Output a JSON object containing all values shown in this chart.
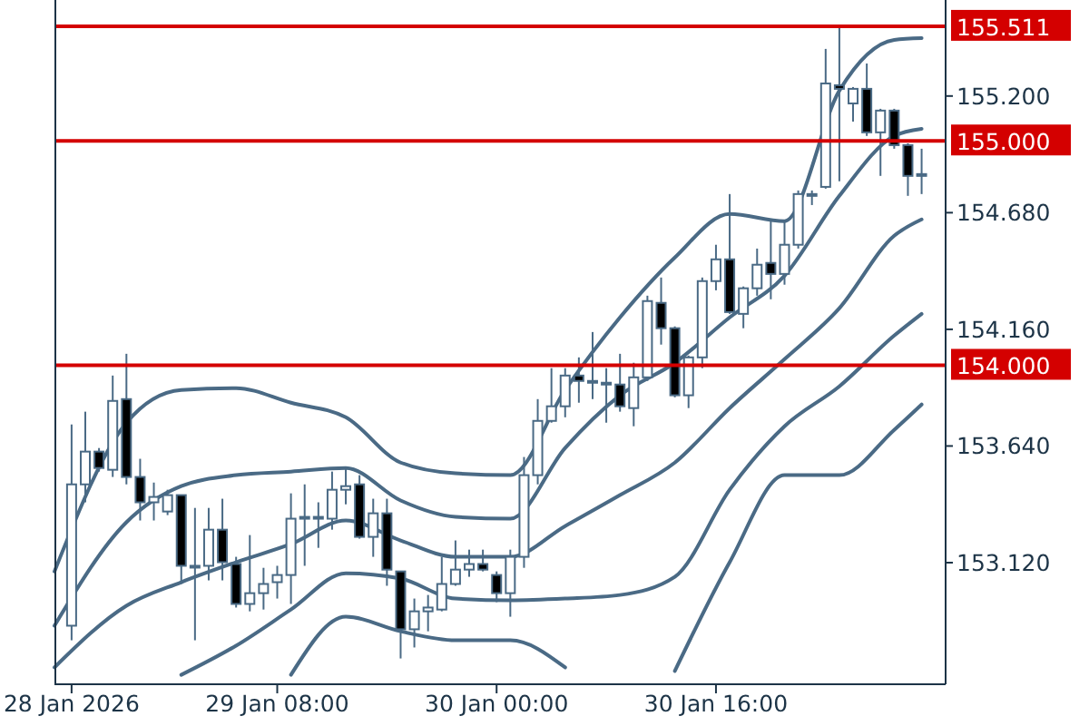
{
  "chart_data": {
    "type": "candlestick",
    "color": "#4a6a85",
    "x": [
      "2026-01-28T17:00",
      "2026-01-28T18:00",
      "2026-01-28T19:00",
      "2026-01-28T20:00",
      "2026-01-28T21:00",
      "2026-01-28T22:00",
      "2026-01-28T23:00",
      "2026-01-29T00:00",
      "2026-01-29T01:00",
      "2026-01-29T02:00",
      "2026-01-29T03:00",
      "2026-01-29T04:00",
      "2026-01-29T05:00",
      "2026-01-29T06:00",
      "2026-01-29T07:00",
      "2026-01-29T08:00",
      "2026-01-29T09:00",
      "2026-01-29T10:00",
      "2026-01-29T11:00",
      "2026-01-29T12:00",
      "2026-01-29T13:00",
      "2026-01-29T14:00",
      "2026-01-29T15:00",
      "2026-01-29T16:00",
      "2026-01-29T17:00",
      "2026-01-29T18:00",
      "2026-01-29T19:00",
      "2026-01-29T20:00",
      "2026-01-29T21:00",
      "2026-01-29T22:00",
      "2026-01-29T23:00",
      "2026-01-30T00:00",
      "2026-01-30T01:00",
      "2026-01-30T02:00",
      "2026-01-30T03:00",
      "2026-01-30T04:00",
      "2026-01-30T05:00",
      "2026-01-30T06:00",
      "2026-01-30T07:00",
      "2026-01-30T08:00",
      "2026-01-30T09:00",
      "2026-01-30T10:00",
      "2026-01-30T11:00",
      "2026-01-30T12:00",
      "2026-01-30T13:00",
      "2026-01-30T14:00",
      "2026-01-30T15:00",
      "2026-01-30T16:00",
      "2026-01-30T17:00",
      "2026-01-30T18:00",
      "2026-01-30T19:00",
      "2026-01-30T20:00",
      "2026-01-30T21:00",
      "2026-01-30T22:00",
      "2026-01-30T23:00",
      "2026-01-31T00:00",
      "2026-01-31T01:00",
      "2026-01-31T02:00",
      "2026-01-31T03:00",
      "2026-01-31T04:00",
      "2026-01-31T05:00",
      "2026-01-31T06:00",
      "2026-01-31T07:00"
    ],
    "ohlc": [
      [
        152.839,
        153.736,
        152.774,
        153.469
      ],
      [
        153.469,
        153.793,
        153.389,
        153.615
      ],
      [
        153.615,
        153.631,
        153.526,
        153.542
      ],
      [
        153.534,
        153.954,
        153.502,
        153.841
      ],
      [
        153.849,
        154.051,
        153.469,
        153.502
      ],
      [
        153.502,
        153.583,
        153.308,
        153.389
      ],
      [
        153.389,
        153.477,
        153.308,
        153.413
      ],
      [
        153.348,
        153.445,
        153.332,
        153.421
      ],
      [
        153.421,
        153.421,
        153.025,
        153.106
      ],
      [
        153.106,
        153.364,
        152.774,
        153.106
      ],
      [
        153.106,
        153.364,
        153.041,
        153.267
      ],
      [
        153.267,
        153.405,
        153.041,
        153.122
      ],
      [
        153.114,
        153.146,
        152.92,
        152.936
      ],
      [
        152.936,
        153.243,
        152.903,
        152.984
      ],
      [
        152.984,
        153.097,
        152.911,
        153.025
      ],
      [
        153.033,
        153.106,
        152.96,
        153.065
      ],
      [
        153.065,
        153.429,
        152.936,
        153.316
      ],
      [
        153.324,
        153.469,
        153.106,
        153.324
      ],
      [
        153.324,
        153.389,
        153.186,
        153.324
      ],
      [
        153.316,
        153.526,
        153.267,
        153.445
      ],
      [
        153.445,
        153.542,
        153.38,
        153.461
      ],
      [
        153.469,
        153.51,
        153.227,
        153.235
      ],
      [
        153.235,
        153.405,
        153.146,
        153.34
      ],
      [
        153.34,
        153.405,
        153.017,
        153.089
      ],
      [
        153.081,
        153.081,
        152.693,
        152.823
      ],
      [
        152.823,
        152.96,
        152.742,
        152.903
      ],
      [
        152.903,
        152.976,
        152.814,
        152.92
      ],
      [
        152.911,
        153.146,
        152.903,
        153.025
      ],
      [
        153.025,
        153.219,
        153.017,
        153.089
      ],
      [
        153.089,
        153.178,
        153.057,
        153.114
      ],
      [
        153.114,
        153.178,
        153.081,
        153.089
      ],
      [
        153.065,
        153.081,
        152.944,
        152.984
      ],
      [
        152.984,
        153.178,
        152.879,
        153.146
      ],
      [
        153.146,
        153.591,
        153.097,
        153.51
      ],
      [
        153.51,
        153.849,
        153.469,
        153.752
      ],
      [
        153.752,
        153.987,
        153.744,
        153.817
      ],
      [
        153.817,
        153.987,
        153.768,
        153.954
      ],
      [
        153.954,
        154.035,
        153.833,
        153.93
      ],
      [
        153.93,
        154.148,
        153.849,
        153.93
      ],
      [
        153.922,
        153.987,
        153.744,
        153.914
      ],
      [
        153.914,
        154.051,
        153.793,
        153.817
      ],
      [
        153.809,
        154.011,
        153.728,
        153.946
      ],
      [
        153.946,
        154.31,
        153.93,
        154.286
      ],
      [
        154.278,
        154.391,
        154.092,
        154.165
      ],
      [
        154.165,
        154.173,
        153.857,
        153.866
      ],
      [
        153.866,
        154.043,
        153.809,
        154.035
      ],
      [
        154.035,
        154.391,
        153.987,
        154.375
      ],
      [
        154.375,
        154.537,
        154.334,
        154.472
      ],
      [
        154.472,
        154.763,
        154.229,
        154.237
      ],
      [
        154.229,
        154.351,
        154.165,
        154.343
      ],
      [
        154.343,
        154.52,
        154.31,
        154.448
      ],
      [
        154.456,
        154.642,
        154.294,
        154.407
      ],
      [
        154.407,
        154.642,
        154.359,
        154.537
      ],
      [
        154.537,
        154.779,
        154.52,
        154.763
      ],
      [
        154.755,
        154.779,
        154.714,
        154.763
      ],
      [
        154.795,
        155.41,
        154.787,
        155.256
      ],
      [
        155.248,
        155.511,
        154.82,
        155.232
      ],
      [
        155.167,
        155.24,
        155.086,
        155.232
      ],
      [
        155.232,
        155.345,
        155.022,
        155.038
      ],
      [
        155.038,
        155.143,
        154.844,
        155.135
      ],
      [
        155.135,
        155.143,
        154.965,
        154.981
      ],
      [
        154.981,
        154.989,
        154.755,
        154.844
      ],
      [
        154.844,
        154.965,
        154.763,
        154.852
      ]
    ],
    "series": [
      {
        "type": "line",
        "color": "#4a6a85",
        "x": [
          "2026-01-28T15:45",
          "2026-01-28T21:00",
          "2026-01-29T01:00",
          "2026-01-29T05:00",
          "2026-01-29T09:00",
          "2026-01-29T13:00",
          "2026-01-29T17:00",
          "2026-01-29T21:00",
          "2026-01-30T01:00",
          "2026-01-30T05:00",
          "2026-01-30T09:00",
          "2026-01-30T13:00",
          "2026-01-30T17:00",
          "2026-01-30T21:00",
          "2026-01-31T01:00",
          "2026-01-31T05:00",
          "2026-01-31T07:00"
        ],
        "values": [
          153.081,
          153.744,
          153.89,
          153.898,
          153.833,
          153.768,
          153.566,
          153.518,
          153.51,
          153.89,
          154.213,
          154.48,
          154.674,
          154.642,
          155.224,
          155.45,
          155.458
        ]
      },
      {
        "type": "line",
        "color": "#4a6a85",
        "x": [
          "2026-01-28T15:45",
          "2026-01-28T21:00",
          "2026-01-29T01:00",
          "2026-01-29T05:00",
          "2026-01-29T09:00",
          "2026-01-29T13:00",
          "2026-01-29T17:00",
          "2026-01-29T21:00",
          "2026-01-30T01:00",
          "2026-01-30T05:00",
          "2026-01-30T09:00",
          "2026-01-30T13:00",
          "2026-01-30T17:00",
          "2026-01-30T21:00",
          "2026-01-31T01:00",
          "2026-01-31T05:00",
          "2026-01-31T07:00"
        ],
        "values": [
          152.839,
          153.3,
          153.461,
          153.51,
          153.526,
          153.542,
          153.397,
          153.324,
          153.316,
          153.631,
          153.866,
          154.011,
          154.213,
          154.399,
          154.755,
          155.022,
          155.054
        ]
      },
      {
        "type": "line",
        "color": "#4a6a85",
        "x": [
          "2026-01-28T15:45",
          "2026-01-28T21:00",
          "2026-01-29T01:00",
          "2026-01-29T05:00",
          "2026-01-29T09:00",
          "2026-01-29T13:00",
          "2026-01-29T17:00",
          "2026-01-29T21:00",
          "2026-01-30T01:00",
          "2026-01-30T05:00",
          "2026-01-30T09:00",
          "2026-01-30T13:00",
          "2026-01-30T17:00",
          "2026-01-30T21:00",
          "2026-01-31T01:00",
          "2026-01-31T05:00",
          "2026-01-31T07:00"
        ],
        "values": [
          152.653,
          152.928,
          153.033,
          153.122,
          153.203,
          153.308,
          153.219,
          153.146,
          153.146,
          153.283,
          153.421,
          153.566,
          153.809,
          154.027,
          154.254,
          154.577,
          154.65
        ]
      },
      {
        "type": "line",
        "color": "#4a6a85",
        "x": [
          "2026-01-29T01:00",
          "2026-01-29T05:00",
          "2026-01-29T09:00",
          "2026-01-29T13:00",
          "2026-01-29T17:00",
          "2026-01-29T21:00",
          "2026-01-30T01:00",
          "2026-01-30T05:00",
          "2026-01-30T09:00",
          "2026-01-30T13:00",
          "2026-01-30T17:00",
          "2026-01-30T21:00",
          "2026-01-31T01:00",
          "2026-01-31T05:00",
          "2026-01-31T07:00"
        ],
        "values": [
          152.62,
          152.75,
          152.911,
          153.073,
          153.049,
          152.96,
          152.952,
          152.96,
          152.976,
          153.057,
          153.445,
          153.728,
          153.906,
          154.132,
          154.229
        ]
      },
      {
        "type": "line",
        "color": "#4a6a85",
        "x": [
          "2026-01-29T09:00",
          "2026-01-29T13:00",
          "2026-01-29T17:00",
          "2026-01-29T21:00",
          "2026-01-30T01:00",
          "2026-01-30T05:00",
          "2026-01-30T09:00",
          "2026-01-30T13:00",
          "2026-01-30T17:00",
          "2026-01-30T21:00",
          "2026-01-31T01:00",
          "2026-01-31T05:00",
          "2026-01-31T07:00"
        ],
        "values": [
          152.62,
          152.879,
          152.814,
          152.774,
          152.774,
          152.653,
          null,
          152.637,
          153.122,
          153.51,
          153.51,
          153.712,
          153.825
        ]
      }
    ],
    "xlim": [
      "2026-01-28T15:45",
      "2026-01-31T08:45"
    ],
    "xticks": [
      {
        "value": "2026-01-28T17:00",
        "label": "28 Jan 2026"
      },
      {
        "value": "2026-01-29T08:00",
        "label": "29 Jan 08:00"
      },
      {
        "value": "2026-01-30T00:00",
        "label": "30 Jan 00:00"
      },
      {
        "value": "2026-01-30T16:00",
        "label": "30 Jan 16:00"
      }
    ],
    "ylim": [
      152.578,
      155.628
    ],
    "yticks": [
      {
        "value": 153.12,
        "label": "153.120"
      },
      {
        "value": 153.64,
        "label": "153.640"
      },
      {
        "value": 154.16,
        "label": "154.160"
      },
      {
        "value": 154.68,
        "label": "154.680"
      },
      {
        "value": 155.2,
        "label": "155.200"
      }
    ],
    "ref_lines": [
      {
        "axis": "y",
        "value": 155.511,
        "label": "155.511",
        "color": "#d40000"
      },
      {
        "axis": "y",
        "value": 155.0,
        "label": "155.000",
        "color": "#d40000"
      },
      {
        "axis": "y",
        "value": 154.0,
        "label": "154.000",
        "color": "#d40000"
      }
    ],
    "grid": false
  }
}
